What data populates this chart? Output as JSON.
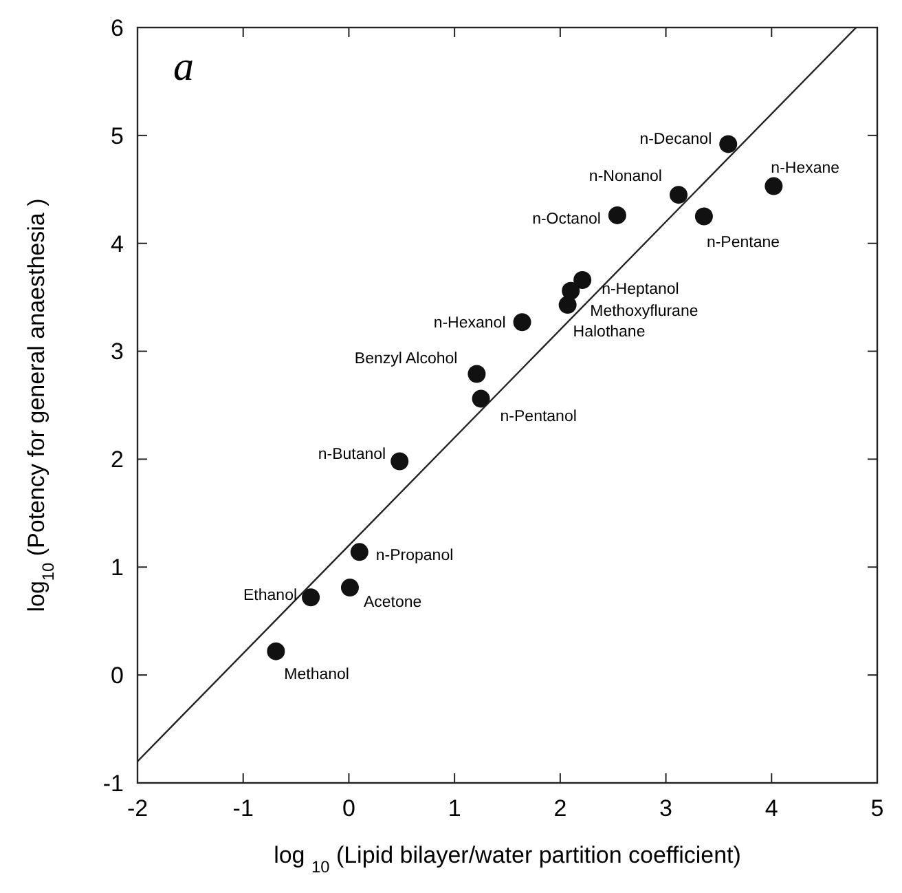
{
  "chart_data": {
    "type": "scatter",
    "xlabel": "log $_{10}$ (Lipid bilayer/water partition coefficient)",
    "ylabel": "log$_{10}$ (Potency for general anaesthesia )",
    "xlim": [
      -2,
      5
    ],
    "ylim": [
      -1,
      6
    ],
    "xticks": [
      -2,
      -1,
      0,
      1,
      2,
      3,
      4,
      5
    ],
    "yticks": [
      -1,
      0,
      1,
      2,
      3,
      4,
      5,
      6
    ],
    "grid": false,
    "marker": "circle",
    "series": [
      {
        "color": "#111111",
        "x": [
          3.59,
          4.02,
          3.12,
          2.54,
          3.36,
          2.21,
          2.1,
          2.07,
          1.64,
          1.21,
          1.25,
          0.48,
          0.1,
          0.01,
          -0.36,
          -0.69
        ],
        "values": [
          4.92,
          4.53,
          4.45,
          4.26,
          4.25,
          3.66,
          3.56,
          3.43,
          3.27,
          2.79,
          2.56,
          1.98,
          1.14,
          0.81,
          0.72,
          0.22
        ]
      },
      {
        "type": "line",
        "color": "#222222",
        "x": [
          -2,
          4.8
        ],
        "values": [
          -0.8,
          6
        ],
        "marker": "none",
        "line_style": "solid"
      }
    ],
    "annotations": [
      "a",
      {
        "text": "n-Decanol",
        "x": 3.59,
        "y": 4.92
      },
      {
        "text": "n-Hexane",
        "x": 4.02,
        "y": 4.53
      },
      {
        "text": "n-Nonanol",
        "x": 3.12,
        "y": 4.45
      },
      {
        "text": "n-Octanol",
        "x": 2.54,
        "y": 4.26
      },
      {
        "text": "n-Pentane",
        "x": 3.36,
        "y": 4.25
      },
      {
        "text": "n-Heptanol",
        "x": 2.21,
        "y": 3.66
      },
      {
        "text": "Methoxyflurane",
        "x": 2.1,
        "y": 3.56
      },
      {
        "text": "Halothane",
        "x": 2.07,
        "y": 3.43
      },
      {
        "text": "n-Hexanol",
        "x": 1.64,
        "y": 3.27
      },
      {
        "text": "Benzyl Alcohol",
        "x": 1.21,
        "y": 2.79
      },
      {
        "text": "n-Pentanol",
        "x": 1.25,
        "y": 2.56
      },
      {
        "text": "n-Butanol",
        "x": 0.48,
        "y": 1.98
      },
      {
        "text": "n-Propanol",
        "x": 0.1,
        "y": 1.14
      },
      {
        "text": "Acetone",
        "x": 0.01,
        "y": 0.81
      },
      {
        "text": "Ethanol",
        "x": -0.36,
        "y": 0.72
      },
      {
        "text": "Methanol",
        "x": -0.69,
        "y": 0.22
      }
    ]
  }
}
